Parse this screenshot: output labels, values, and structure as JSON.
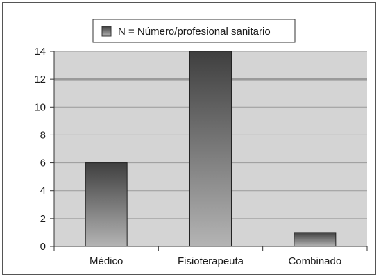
{
  "chart_data": {
    "type": "bar",
    "categories": [
      "Médico",
      "Fisioterapeuta",
      "Combinado"
    ],
    "series": [
      {
        "name": "N = Número/profesional sanitario",
        "values": [
          6,
          14,
          1
        ]
      }
    ],
    "xlabel": "",
    "ylabel": "",
    "ylim": [
      0,
      14
    ],
    "yticks": [
      0,
      2,
      4,
      6,
      8,
      10,
      12,
      14
    ],
    "grid": true,
    "legend": "top-center",
    "colors": {
      "plot_background": "#d4d4d4",
      "gridline": "#9a9a9a",
      "bar_dark": "#3f3f3f",
      "bar_light": "#b4b4b4"
    }
  }
}
